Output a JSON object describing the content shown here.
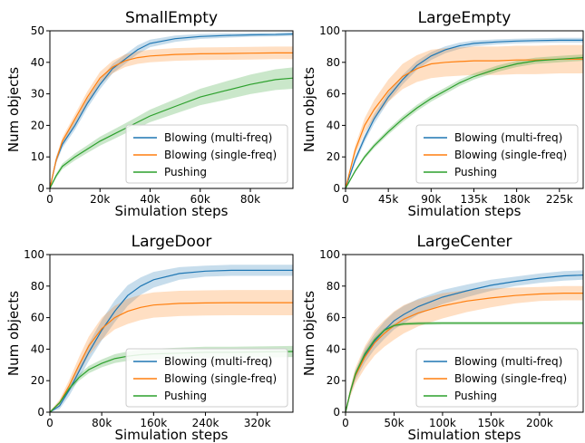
{
  "chart_data": [
    {
      "type": "line",
      "title": "SmallEmpty",
      "xlabel": "Simulation steps",
      "ylabel": "Num objects",
      "xlim": [
        0,
        97000
      ],
      "ylim": [
        0,
        50
      ],
      "xticks": [
        0,
        20000,
        40000,
        60000,
        80000
      ],
      "xtick_labels": [
        "0",
        "20k",
        "40k",
        "60k",
        "80k"
      ],
      "yticks": [
        0,
        10,
        20,
        30,
        40,
        50
      ],
      "ytick_labels": [
        "0",
        "10",
        "20",
        "30",
        "40",
        "50"
      ],
      "legend_position": "bottom-right",
      "series": [
        {
          "name": "Blowing (multi-freq)",
          "color": "#1f77b4",
          "x": [
            0,
            2500,
            5000,
            10000,
            15000,
            20000,
            25000,
            30000,
            35000,
            40000,
            50000,
            60000,
            70000,
            80000,
            90000,
            97000
          ],
          "y": [
            0,
            9,
            14,
            20,
            27,
            33,
            38,
            41,
            44,
            46,
            47.5,
            48.2,
            48.5,
            48.7,
            48.8,
            49
          ],
          "band": [
            0.5,
            1.0,
            1.2,
            1.4,
            1.5,
            1.5,
            1.5,
            1.5,
            1.4,
            1.2,
            1.0,
            0.8,
            0.7,
            0.6,
            0.6,
            0.6
          ]
        },
        {
          "name": "Blowing (single-freq)",
          "color": "#ff7f0e",
          "x": [
            0,
            2500,
            5000,
            10000,
            15000,
            20000,
            25000,
            30000,
            35000,
            40000,
            50000,
            60000,
            70000,
            80000,
            90000,
            97000
          ],
          "y": [
            0,
            9,
            15,
            22,
            29,
            35,
            38.5,
            40.5,
            41.5,
            42,
            42.5,
            42.7,
            42.8,
            42.9,
            43,
            43
          ],
          "band": [
            0.5,
            1.0,
            1.2,
            1.5,
            1.8,
            2.0,
            2.0,
            2.0,
            2.0,
            2.0,
            2.0,
            2.0,
            2.0,
            2.0,
            2.0,
            2.0
          ]
        },
        {
          "name": "Pushing",
          "color": "#2ca02c",
          "x": [
            0,
            2500,
            5000,
            10000,
            15000,
            20000,
            25000,
            30000,
            35000,
            40000,
            50000,
            60000,
            70000,
            80000,
            90000,
            97000
          ],
          "y": [
            0,
            4,
            7,
            10,
            12.5,
            15,
            17,
            19,
            21,
            23,
            26,
            29,
            31,
            33,
            34.5,
            35
          ],
          "band": [
            0.3,
            0.7,
            0.9,
            1.1,
            1.2,
            1.4,
            1.5,
            1.6,
            1.8,
            2.0,
            2.3,
            2.6,
            2.9,
            3.1,
            3.3,
            3.4
          ]
        }
      ]
    },
    {
      "type": "line",
      "title": "LargeEmpty",
      "xlabel": "Simulation steps",
      "ylabel": "Num objects",
      "xlim": [
        0,
        250000
      ],
      "ylim": [
        0,
        100
      ],
      "xticks": [
        0,
        45000,
        90000,
        135000,
        180000,
        225000
      ],
      "xtick_labels": [
        "0",
        "45k",
        "90k",
        "135k",
        "180k",
        "225k"
      ],
      "yticks": [
        0,
        20,
        40,
        60,
        80,
        100
      ],
      "ytick_labels": [
        "0",
        "20",
        "40",
        "60",
        "80",
        "100"
      ],
      "legend_position": "bottom-right",
      "series": [
        {
          "name": "Blowing (multi-freq)",
          "color": "#1f77b4",
          "x": [
            0,
            10000,
            20000,
            30000,
            45000,
            60000,
            75000,
            90000,
            105000,
            120000,
            135000,
            160000,
            180000,
            200000,
            225000,
            250000
          ],
          "y": [
            0,
            18,
            32,
            44,
            58,
            69,
            78,
            84,
            88,
            90.5,
            92,
            93,
            93.5,
            93.8,
            94,
            94
          ],
          "band": [
            0.5,
            2.0,
            2.5,
            3.0,
            3.0,
            3.0,
            2.8,
            2.5,
            2.2,
            2.0,
            1.8,
            1.6,
            1.5,
            1.5,
            1.5,
            1.5
          ]
        },
        {
          "name": "Blowing (single-freq)",
          "color": "#ff7f0e",
          "x": [
            0,
            10000,
            20000,
            30000,
            45000,
            60000,
            75000,
            90000,
            105000,
            120000,
            135000,
            160000,
            180000,
            200000,
            225000,
            250000
          ],
          "y": [
            0,
            24,
            40,
            50,
            62,
            71,
            76,
            79,
            80,
            80.5,
            81,
            81,
            81.5,
            81.5,
            82,
            82
          ],
          "band": [
            0.5,
            3.0,
            4.5,
            6.0,
            7.0,
            8.0,
            8.5,
            9.0,
            9.0,
            9.0,
            9.0,
            9.0,
            9.0,
            9.0,
            9.0,
            9.0
          ]
        },
        {
          "name": "Pushing",
          "color": "#2ca02c",
          "x": [
            0,
            10000,
            20000,
            30000,
            45000,
            60000,
            75000,
            90000,
            105000,
            120000,
            135000,
            160000,
            180000,
            200000,
            225000,
            250000
          ],
          "y": [
            0,
            11,
            20,
            27,
            36,
            44,
            51,
            57,
            62,
            67,
            71,
            76,
            79,
            81,
            82,
            83
          ],
          "band": [
            0.3,
            1.0,
            1.3,
            1.5,
            1.8,
            2.0,
            2.0,
            2.0,
            2.0,
            2.0,
            2.0,
            2.0,
            2.0,
            2.0,
            2.0,
            2.0
          ]
        }
      ]
    },
    {
      "type": "line",
      "title": "LargeDoor",
      "xlabel": "Simulation steps",
      "ylabel": "Num objects",
      "xlim": [
        0,
        375000
      ],
      "ylim": [
        0,
        100
      ],
      "xticks": [
        0,
        80000,
        160000,
        240000,
        320000
      ],
      "xtick_labels": [
        "0",
        "80k",
        "160k",
        "240k",
        "320k"
      ],
      "yticks": [
        0,
        20,
        40,
        60,
        80,
        100
      ],
      "ytick_labels": [
        "0",
        "20",
        "40",
        "60",
        "80",
        "100"
      ],
      "legend_position": "bottom-right",
      "series": [
        {
          "name": "Blowing (multi-freq)",
          "color": "#1f77b4",
          "x": [
            0,
            15000,
            30000,
            45000,
            60000,
            80000,
            100000,
            120000,
            140000,
            160000,
            200000,
            240000,
            280000,
            320000,
            375000
          ],
          "y": [
            0,
            4,
            14,
            26,
            38,
            52,
            64,
            74,
            80,
            84,
            88,
            89.5,
            90,
            90,
            90
          ],
          "band": [
            0.5,
            2.0,
            3.5,
            4.5,
            5.5,
            6.5,
            7.0,
            6.5,
            5.5,
            5.0,
            4.0,
            3.5,
            3.5,
            3.5,
            3.5
          ]
        },
        {
          "name": "Blowing (single-freq)",
          "color": "#ff7f0e",
          "x": [
            0,
            15000,
            30000,
            45000,
            60000,
            80000,
            100000,
            120000,
            140000,
            160000,
            200000,
            240000,
            280000,
            320000,
            375000
          ],
          "y": [
            0,
            6,
            17,
            30,
            42,
            53,
            60,
            64,
            66.5,
            68,
            69,
            69.3,
            69.5,
            69.5,
            69.5
          ],
          "band": [
            0.5,
            2.0,
            3.5,
            5.0,
            6.0,
            7.0,
            7.5,
            8.0,
            8.0,
            8.0,
            8.0,
            8.0,
            8.0,
            8.0,
            8.0
          ]
        },
        {
          "name": "Pushing",
          "color": "#2ca02c",
          "x": [
            0,
            15000,
            30000,
            45000,
            60000,
            80000,
            100000,
            120000,
            140000,
            160000,
            200000,
            240000,
            280000,
            320000,
            375000
          ],
          "y": [
            0,
            6,
            15,
            22,
            27,
            31,
            34,
            35.5,
            36.5,
            37,
            37.5,
            38,
            38,
            38.2,
            38.5
          ],
          "band": [
            0.3,
            1.0,
            1.5,
            2.0,
            2.3,
            2.5,
            2.8,
            3.0,
            3.2,
            3.3,
            3.5,
            3.5,
            3.5,
            3.5,
            3.5
          ]
        }
      ]
    },
    {
      "type": "line",
      "title": "LargeCenter",
      "xlabel": "Simulation steps",
      "ylabel": "Num objects",
      "xlim": [
        0,
        245000
      ],
      "ylim": [
        0,
        100
      ],
      "xticks": [
        0,
        50000,
        100000,
        150000,
        200000
      ],
      "xtick_labels": [
        "0",
        "50k",
        "100k",
        "150k",
        "200k"
      ],
      "yticks": [
        0,
        20,
        40,
        60,
        80,
        100
      ],
      "ytick_labels": [
        "0",
        "20",
        "40",
        "60",
        "80",
        "100"
      ],
      "legend_position": "bottom-right",
      "series": [
        {
          "name": "Blowing (multi-freq)",
          "color": "#1f77b4",
          "x": [
            0,
            5000,
            10000,
            20000,
            30000,
            40000,
            50000,
            60000,
            75000,
            100000,
            125000,
            150000,
            175000,
            200000,
            225000,
            245000
          ],
          "y": [
            0,
            13,
            23,
            36,
            45,
            52,
            58,
            62,
            67,
            73,
            77,
            80.5,
            83,
            85,
            86.5,
            87
          ],
          "band": [
            0.5,
            2.0,
            3.0,
            4.5,
            5.0,
            5.5,
            5.5,
            5.5,
            5.0,
            4.5,
            4.0,
            3.5,
            3.0,
            3.0,
            3.0,
            3.0
          ]
        },
        {
          "name": "Blowing (single-freq)",
          "color": "#ff7f0e",
          "x": [
            0,
            5000,
            10000,
            20000,
            30000,
            40000,
            50000,
            60000,
            75000,
            100000,
            125000,
            150000,
            175000,
            200000,
            225000,
            245000
          ],
          "y": [
            0,
            13,
            23,
            35,
            44,
            50,
            55,
            59,
            63,
            67.5,
            70.5,
            72.5,
            74,
            75,
            75.5,
            75.5
          ],
          "band": [
            0.5,
            3.0,
            5.0,
            7.0,
            8.0,
            8.5,
            9.0,
            9.0,
            8.5,
            8.0,
            7.0,
            6.0,
            5.0,
            4.5,
            4.5,
            4.5
          ]
        },
        {
          "name": "Pushing",
          "color": "#2ca02c",
          "x": [
            0,
            5000,
            10000,
            20000,
            30000,
            40000,
            50000,
            60000,
            75000,
            100000,
            125000,
            150000,
            175000,
            200000,
            225000,
            245000
          ],
          "y": [
            0,
            13,
            24,
            37,
            46,
            52,
            55,
            56,
            56.3,
            56.5,
            56.5,
            56.5,
            56.5,
            56.5,
            56.5,
            56.5
          ],
          "band": [
            0.3,
            1.5,
            2.0,
            2.0,
            1.5,
            1.2,
            1.0,
            1.0,
            1.0,
            1.0,
            1.0,
            1.0,
            1.0,
            1.0,
            1.0,
            1.0
          ]
        }
      ]
    }
  ]
}
